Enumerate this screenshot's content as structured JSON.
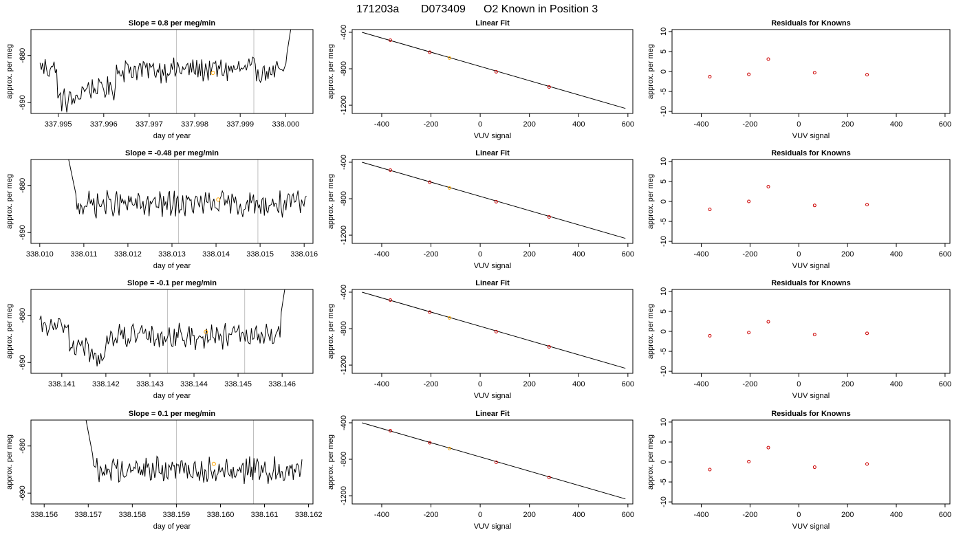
{
  "page": {
    "title_parts": [
      "171203a",
      "D073409",
      "O2 Known in Position  3"
    ]
  },
  "colors": {
    "line": "#000000",
    "frame": "#000000",
    "vline": "#bebebe",
    "point_known": "#cc0000",
    "point_sample": "#ffa500"
  },
  "chart_data": [
    {
      "type": "line",
      "row": 0,
      "col": 0,
      "title": "Slope =  0.8  per meg/min",
      "xlabel": "day of year",
      "ylabel": "approx. per meg",
      "xlim": [
        337.9944,
        338.0006
      ],
      "ylim": [
        -692.3,
        -674.5
      ],
      "xticks": [
        337.995,
        337.996,
        337.997,
        337.998,
        337.999,
        338.0
      ],
      "xtick_labels": [
        "337.995",
        "337.996",
        "337.997",
        "337.998",
        "337.999",
        "338.000"
      ],
      "yticks": [
        -680,
        -690
      ],
      "ytick_labels": [
        "-680",
        "-690"
      ],
      "vlines": [
        337.9976,
        337.9993
      ],
      "marker": [
        337.9984,
        -683.7
      ],
      "x_start": 337.9946,
      "x_end": 338.0002,
      "n": 200,
      "segments": [
        [
          0,
          0.07,
          -682.5,
          2.2
        ],
        [
          0.07,
          0.16,
          -689.5,
          2.2
        ],
        [
          0.16,
          0.3,
          -687.0,
          2.0
        ],
        [
          0.3,
          0.85,
          -683.0,
          2.2
        ],
        [
          0.85,
          0.93,
          -683.5,
          2.0
        ]
      ],
      "spike": "end"
    },
    {
      "type": "scatter",
      "row": 0,
      "col": 1,
      "title": "Linear Fit",
      "xlabel": "VUV signal",
      "ylabel": "approx. per meg",
      "xlim": [
        -520,
        620
      ],
      "ylim": [
        -1290,
        -370
      ],
      "xticks": [
        -400,
        -200,
        0,
        200,
        400,
        600
      ],
      "xtick_labels": [
        "-400",
        "-200",
        "0",
        "200",
        "400",
        "600"
      ],
      "yticks": [
        -400,
        -800,
        -1200
      ],
      "ytick_labels": [
        "-400",
        "-800",
        "-1200"
      ],
      "fit_line": [
        [
          -480,
          -400
        ],
        [
          590,
          -1235
        ]
      ],
      "points": [
        [
          -365,
          -487
        ],
        [
          -205,
          -619
        ],
        [
          65,
          -833
        ],
        [
          280,
          -1000
        ]
      ],
      "sample_point": [
        -125,
        -682
      ]
    },
    {
      "type": "scatter",
      "row": 0,
      "col": 2,
      "title": "Residuals for Knowns",
      "xlabel": "VUV signal",
      "ylabel": "approx. per meg",
      "xlim": [
        -520,
        620
      ],
      "ylim": [
        -10.5,
        10.5
      ],
      "xticks": [
        -400,
        -200,
        0,
        200,
        400,
        600
      ],
      "xtick_labels": [
        "-400",
        "-200",
        "0",
        "200",
        "400",
        "600"
      ],
      "yticks": [
        10,
        5,
        0,
        -5,
        -10
      ],
      "ytick_labels": [
        "10",
        "5",
        "0",
        "-5",
        "-10"
      ],
      "points": [
        [
          -365,
          -1.3
        ],
        [
          -205,
          -0.7
        ],
        [
          -125,
          3.1
        ],
        [
          65,
          -0.3
        ],
        [
          280,
          -0.8
        ]
      ]
    },
    {
      "type": "line",
      "row": 1,
      "col": 0,
      "title": "Slope =  -0.48  per meg/min",
      "xlabel": "day of year",
      "ylabel": "approx. per meg",
      "xlim": [
        338.0098,
        338.0162
      ],
      "ylim": [
        -692.3,
        -674.5
      ],
      "xticks": [
        338.01,
        338.011,
        338.012,
        338.013,
        338.014,
        338.015,
        338.016
      ],
      "xtick_labels": [
        "338.010",
        "338.011",
        "338.012",
        "338.013",
        "338.014",
        "338.015",
        "338.016"
      ],
      "yticks": [
        -680,
        -690
      ],
      "ytick_labels": [
        "-680",
        "-690"
      ],
      "vlines": [
        338.01315,
        338.01495
      ],
      "marker": [
        338.01405,
        -683.0
      ],
      "x_start": 338.0106,
      "x_end": 338.01605,
      "n": 200,
      "segments": [
        [
          0,
          1,
          -684.0,
          2.3
        ]
      ],
      "spike": "start"
    },
    {
      "type": "scatter",
      "row": 1,
      "col": 1,
      "title": "Linear Fit",
      "xlabel": "VUV signal",
      "ylabel": "approx. per meg",
      "xlim": [
        -520,
        620
      ],
      "ylim": [
        -1290,
        -370
      ],
      "xticks": [
        -400,
        -200,
        0,
        200,
        400,
        600
      ],
      "xtick_labels": [
        "-400",
        "-200",
        "0",
        "200",
        "400",
        "600"
      ],
      "yticks": [
        -400,
        -800,
        -1200
      ],
      "ytick_labels": [
        "-400",
        "-800",
        "-1200"
      ],
      "fit_line": [
        [
          -480,
          -400
        ],
        [
          590,
          -1235
        ]
      ],
      "points": [
        [
          -365,
          -487
        ],
        [
          -205,
          -619
        ],
        [
          65,
          -833
        ],
        [
          280,
          -1000
        ]
      ],
      "sample_point": [
        -125,
        -682
      ]
    },
    {
      "type": "scatter",
      "row": 1,
      "col": 2,
      "title": "Residuals for Knowns",
      "xlabel": "VUV signal",
      "ylabel": "approx. per meg",
      "xlim": [
        -520,
        620
      ],
      "ylim": [
        -10.5,
        10.5
      ],
      "xticks": [
        -400,
        -200,
        0,
        200,
        400,
        600
      ],
      "xtick_labels": [
        "-400",
        "-200",
        "0",
        "200",
        "400",
        "600"
      ],
      "yticks": [
        10,
        5,
        0,
        -5,
        -10
      ],
      "ytick_labels": [
        "10",
        "5",
        "0",
        "-5",
        "-10"
      ],
      "points": [
        [
          -365,
          -2.0
        ],
        [
          -205,
          0.0
        ],
        [
          -125,
          3.7
        ],
        [
          65,
          -1.0
        ],
        [
          280,
          -0.8
        ]
      ]
    },
    {
      "type": "line",
      "row": 2,
      "col": 0,
      "title": "Slope =  -0.1  per meg/min",
      "xlabel": "day of year",
      "ylabel": "approx. per meg",
      "xlim": [
        338.1403,
        338.1467
      ],
      "ylim": [
        -692.3,
        -674.5
      ],
      "xticks": [
        338.141,
        338.142,
        338.143,
        338.144,
        338.145,
        338.146
      ],
      "xtick_labels": [
        "338.141",
        "338.142",
        "338.143",
        "338.144",
        "338.145",
        "338.146"
      ],
      "yticks": [
        -680,
        -690
      ],
      "ytick_labels": [
        "-680",
        "-690"
      ],
      "vlines": [
        338.1434,
        338.14515
      ],
      "marker": [
        338.14427,
        -683.5
      ],
      "x_start": 338.1405,
      "x_end": 338.14615,
      "n": 200,
      "segments": [
        [
          0,
          0.12,
          -682.5,
          1.8
        ],
        [
          0.12,
          0.2,
          -686.5,
          2.0
        ],
        [
          0.2,
          0.27,
          -689.0,
          2.2
        ],
        [
          0.27,
          0.9,
          -684.5,
          2.2
        ],
        [
          0.9,
          0.96,
          -684.0,
          2.0
        ]
      ],
      "spike": "end"
    },
    {
      "type": "scatter",
      "row": 2,
      "col": 1,
      "title": "Linear Fit",
      "xlabel": "VUV signal",
      "ylabel": "approx. per meg",
      "xlim": [
        -520,
        620
      ],
      "ylim": [
        -1290,
        -370
      ],
      "xticks": [
        -400,
        -200,
        0,
        200,
        400,
        600
      ],
      "xtick_labels": [
        "-400",
        "-200",
        "0",
        "200",
        "400",
        "600"
      ],
      "yticks": [
        -400,
        -800,
        -1200
      ],
      "ytick_labels": [
        "-400",
        "-800",
        "-1200"
      ],
      "fit_line": [
        [
          -480,
          -400
        ],
        [
          590,
          -1235
        ]
      ],
      "points": [
        [
          -365,
          -487
        ],
        [
          -205,
          -619
        ],
        [
          65,
          -833
        ],
        [
          280,
          -1000
        ]
      ],
      "sample_point": [
        -125,
        -682
      ]
    },
    {
      "type": "scatter",
      "row": 2,
      "col": 2,
      "title": "Residuals for Knowns",
      "xlabel": "VUV signal",
      "ylabel": "approx. per meg",
      "xlim": [
        -520,
        620
      ],
      "ylim": [
        -10.5,
        10.5
      ],
      "xticks": [
        -400,
        -200,
        0,
        200,
        400,
        600
      ],
      "xtick_labels": [
        "-400",
        "-200",
        "0",
        "200",
        "400",
        "600"
      ],
      "yticks": [
        10,
        5,
        0,
        -5,
        -10
      ],
      "ytick_labels": [
        "10",
        "5",
        "0",
        "-5",
        "-10"
      ],
      "points": [
        [
          -365,
          -1.1
        ],
        [
          -205,
          -0.3
        ],
        [
          -125,
          2.4
        ],
        [
          65,
          -0.8
        ],
        [
          280,
          -0.5
        ]
      ]
    },
    {
      "type": "line",
      "row": 3,
      "col": 0,
      "title": "Slope =  0.1  per meg/min",
      "xlabel": "day of year",
      "ylabel": "approx. per meg",
      "xlim": [
        338.1557,
        338.1621
      ],
      "ylim": [
        -692.3,
        -674.5
      ],
      "xticks": [
        338.156,
        338.157,
        338.158,
        338.159,
        338.16,
        338.161,
        338.162
      ],
      "xtick_labels": [
        "338.156",
        "338.157",
        "338.158",
        "338.159",
        "338.160",
        "338.161",
        "338.162"
      ],
      "yticks": [
        -680,
        -690
      ],
      "ytick_labels": [
        "-680",
        "-690"
      ],
      "vlines": [
        338.159,
        338.16075
      ],
      "marker": [
        338.15985,
        -683.8
      ],
      "x_start": 338.1569,
      "x_end": 338.16185,
      "n": 200,
      "segments": [
        [
          0,
          1,
          -685.0,
          2.3
        ]
      ],
      "spike": "start"
    },
    {
      "type": "scatter",
      "row": 3,
      "col": 1,
      "title": "Linear Fit",
      "xlabel": "VUV signal",
      "ylabel": "approx. per meg",
      "xlim": [
        -520,
        620
      ],
      "ylim": [
        -1290,
        -370
      ],
      "xticks": [
        -400,
        -200,
        0,
        200,
        400,
        600
      ],
      "xtick_labels": [
        "-400",
        "-200",
        "0",
        "200",
        "400",
        "600"
      ],
      "yticks": [
        -400,
        -800,
        -1200
      ],
      "ytick_labels": [
        "-400",
        "-800",
        "-1200"
      ],
      "fit_line": [
        [
          -480,
          -400
        ],
        [
          590,
          -1235
        ]
      ],
      "points": [
        [
          -365,
          -487
        ],
        [
          -205,
          -619
        ],
        [
          65,
          -833
        ],
        [
          280,
          -1000
        ]
      ],
      "sample_point": [
        -125,
        -682
      ]
    },
    {
      "type": "scatter",
      "row": 3,
      "col": 2,
      "title": "Residuals for Knowns",
      "xlabel": "VUV signal",
      "ylabel": "approx. per meg",
      "xlim": [
        -520,
        620
      ],
      "ylim": [
        -10.5,
        10.5
      ],
      "xticks": [
        -400,
        -200,
        0,
        200,
        400,
        600
      ],
      "xtick_labels": [
        "-400",
        "-200",
        "0",
        "200",
        "400",
        "600"
      ],
      "yticks": [
        10,
        5,
        0,
        -5,
        -10
      ],
      "ytick_labels": [
        "10",
        "5",
        "0",
        "-5",
        "-10"
      ],
      "points": [
        [
          -365,
          -1.9
        ],
        [
          -205,
          0.1
        ],
        [
          -125,
          3.6
        ],
        [
          65,
          -1.3
        ],
        [
          280,
          -0.5
        ]
      ]
    }
  ]
}
